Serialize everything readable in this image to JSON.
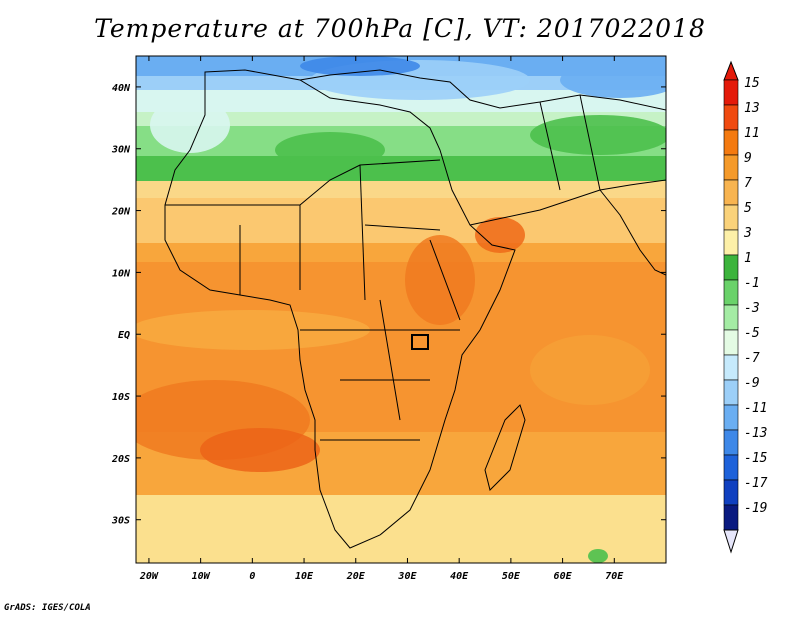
{
  "title": "Temperature at 700hPa [C], VT: 2017022018",
  "credit": "GrADS: IGES/COLA",
  "lon_ticks": [
    {
      "label": "20W",
      "lon": -20
    },
    {
      "label": "10W",
      "lon": -10
    },
    {
      "label": "0",
      "lon": 0
    },
    {
      "label": "10E",
      "lon": 10
    },
    {
      "label": "20E",
      "lon": 20
    },
    {
      "label": "30E",
      "lon": 30
    },
    {
      "label": "40E",
      "lon": 40
    },
    {
      "label": "50E",
      "lon": 50
    },
    {
      "label": "60E",
      "lon": 60
    },
    {
      "label": "70E",
      "lon": 70
    }
  ],
  "lat_ticks": [
    {
      "label": "40N",
      "lat": 40
    },
    {
      "label": "30N",
      "lat": 30
    },
    {
      "label": "20N",
      "lat": 20
    },
    {
      "label": "10N",
      "lat": 10
    },
    {
      "label": "EQ",
      "lat": 0
    },
    {
      "label": "10S",
      "lat": -10
    },
    {
      "label": "20S",
      "lat": -20
    },
    {
      "label": "30S",
      "lat": -30
    }
  ],
  "map_extent": {
    "lon_min": -22.5,
    "lon_max": 80,
    "lat_min": -37,
    "lat_max": 45
  },
  "colorbar": {
    "labels": [
      "15",
      "13",
      "11",
      "9",
      "7",
      "5",
      "3",
      "1",
      "-1",
      "-3",
      "-5",
      "-7",
      "-9",
      "-11",
      "-13",
      "-15",
      "-17",
      "-19"
    ],
    "colors": [
      "#e41a0a",
      "#f04a10",
      "#f47a10",
      "#f59a2a",
      "#f8b450",
      "#fad27a",
      "#fdf0a8",
      "#3cb43c",
      "#6ad26a",
      "#a4eca4",
      "#e4fbe4",
      "#c6eafc",
      "#9ccff8",
      "#6aaef2",
      "#3e88e8",
      "#1e62da",
      "#1040c0",
      "#0a1a80"
    ]
  }
}
